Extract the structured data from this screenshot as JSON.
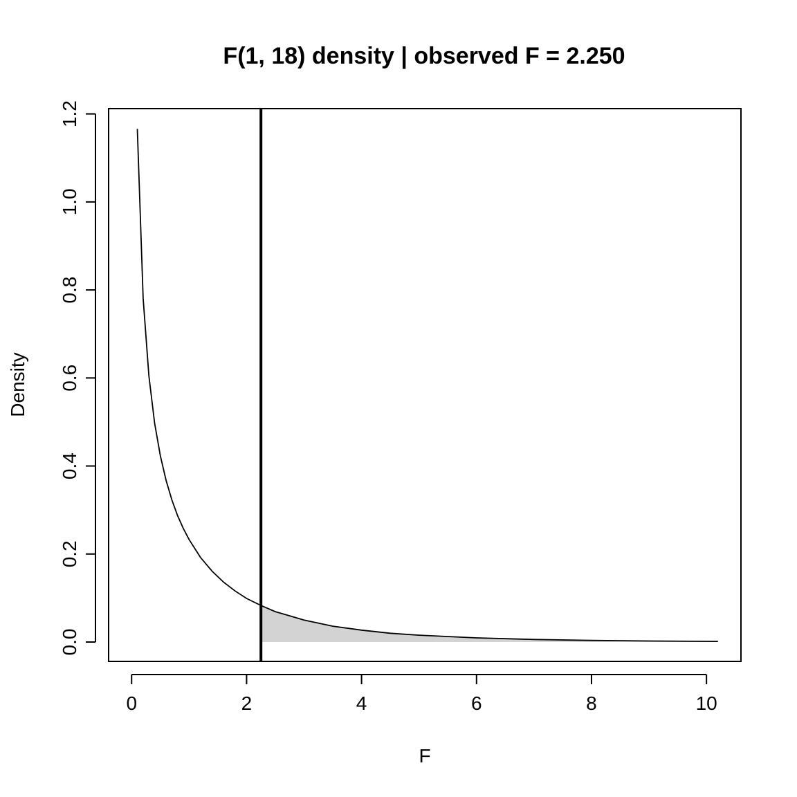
{
  "chart_data": {
    "type": "line",
    "title": "F(1, 18) density  |  observed F = 2.250",
    "xlabel": "F",
    "ylabel": "Density",
    "xlim": [
      -0.4,
      10.6
    ],
    "ylim": [
      -0.044,
      1.212
    ],
    "xticks": [
      0,
      2,
      4,
      6,
      8,
      10
    ],
    "xtick_labels": [
      "0",
      "2",
      "4",
      "6",
      "8",
      "10"
    ],
    "yticks": [
      0.0,
      0.2,
      0.4,
      0.6,
      0.8,
      1.0,
      1.2
    ],
    "ytick_labels": [
      "0.0",
      "0.2",
      "0.4",
      "0.6",
      "0.8",
      "1.0",
      "1.2"
    ],
    "grid": false,
    "observed_f": 2.25,
    "shaded_region": {
      "from": 2.25,
      "to": 10.2,
      "color": "#d3d3d3"
    },
    "curve_color": "#000000",
    "vline_color": "#000000",
    "series": [
      {
        "x": [
          0.1,
          0.2,
          0.3,
          0.4,
          0.5,
          0.6,
          0.7,
          0.8,
          0.9,
          1.0,
          1.2,
          1.4,
          1.6,
          1.8,
          2.0,
          2.25,
          2.5,
          3.0,
          3.5,
          4.0,
          4.5,
          5.0,
          6.0,
          7.0,
          8.0,
          9.0,
          10.2
        ],
        "y": [
          1.166,
          0.781,
          0.605,
          0.497,
          0.423,
          0.367,
          0.323,
          0.287,
          0.258,
          0.233,
          0.192,
          0.161,
          0.136,
          0.116,
          0.099,
          0.083,
          0.069,
          0.05,
          0.036,
          0.027,
          0.02,
          0.0155,
          0.0094,
          0.0058,
          0.0037,
          0.0024,
          0.0015
        ]
      }
    ]
  }
}
